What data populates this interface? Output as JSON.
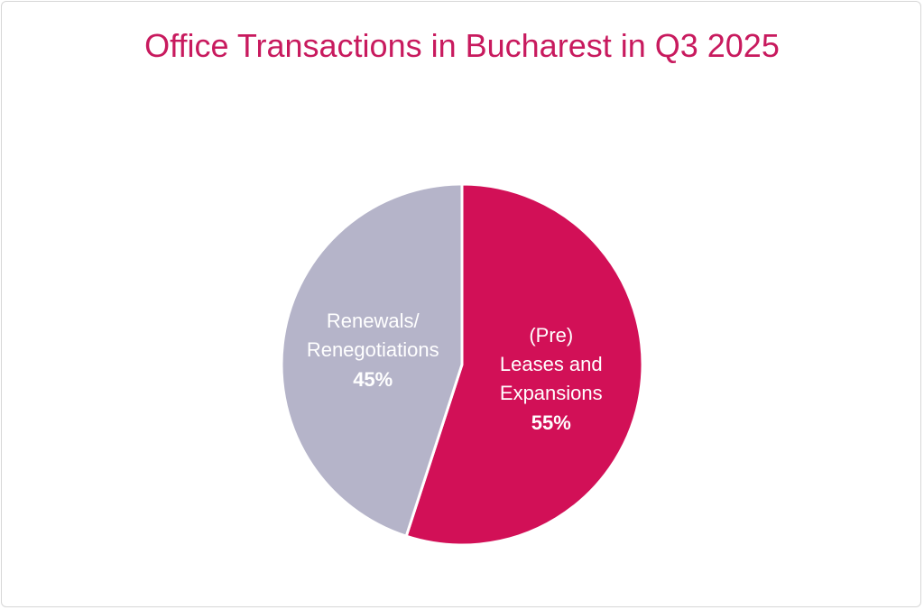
{
  "chart_data": {
    "type": "pie",
    "title": "Office Transactions in Bucharest in Q3 2025",
    "categories": [
      "(Pre) Leases and Expansions",
      "Renewals/ Renegotiations"
    ],
    "values": [
      55,
      45
    ],
    "value_labels": [
      "55%",
      "45%"
    ],
    "colors": [
      "#d21057",
      "#b5b4c9"
    ],
    "title_color": "#c81a5e"
  }
}
